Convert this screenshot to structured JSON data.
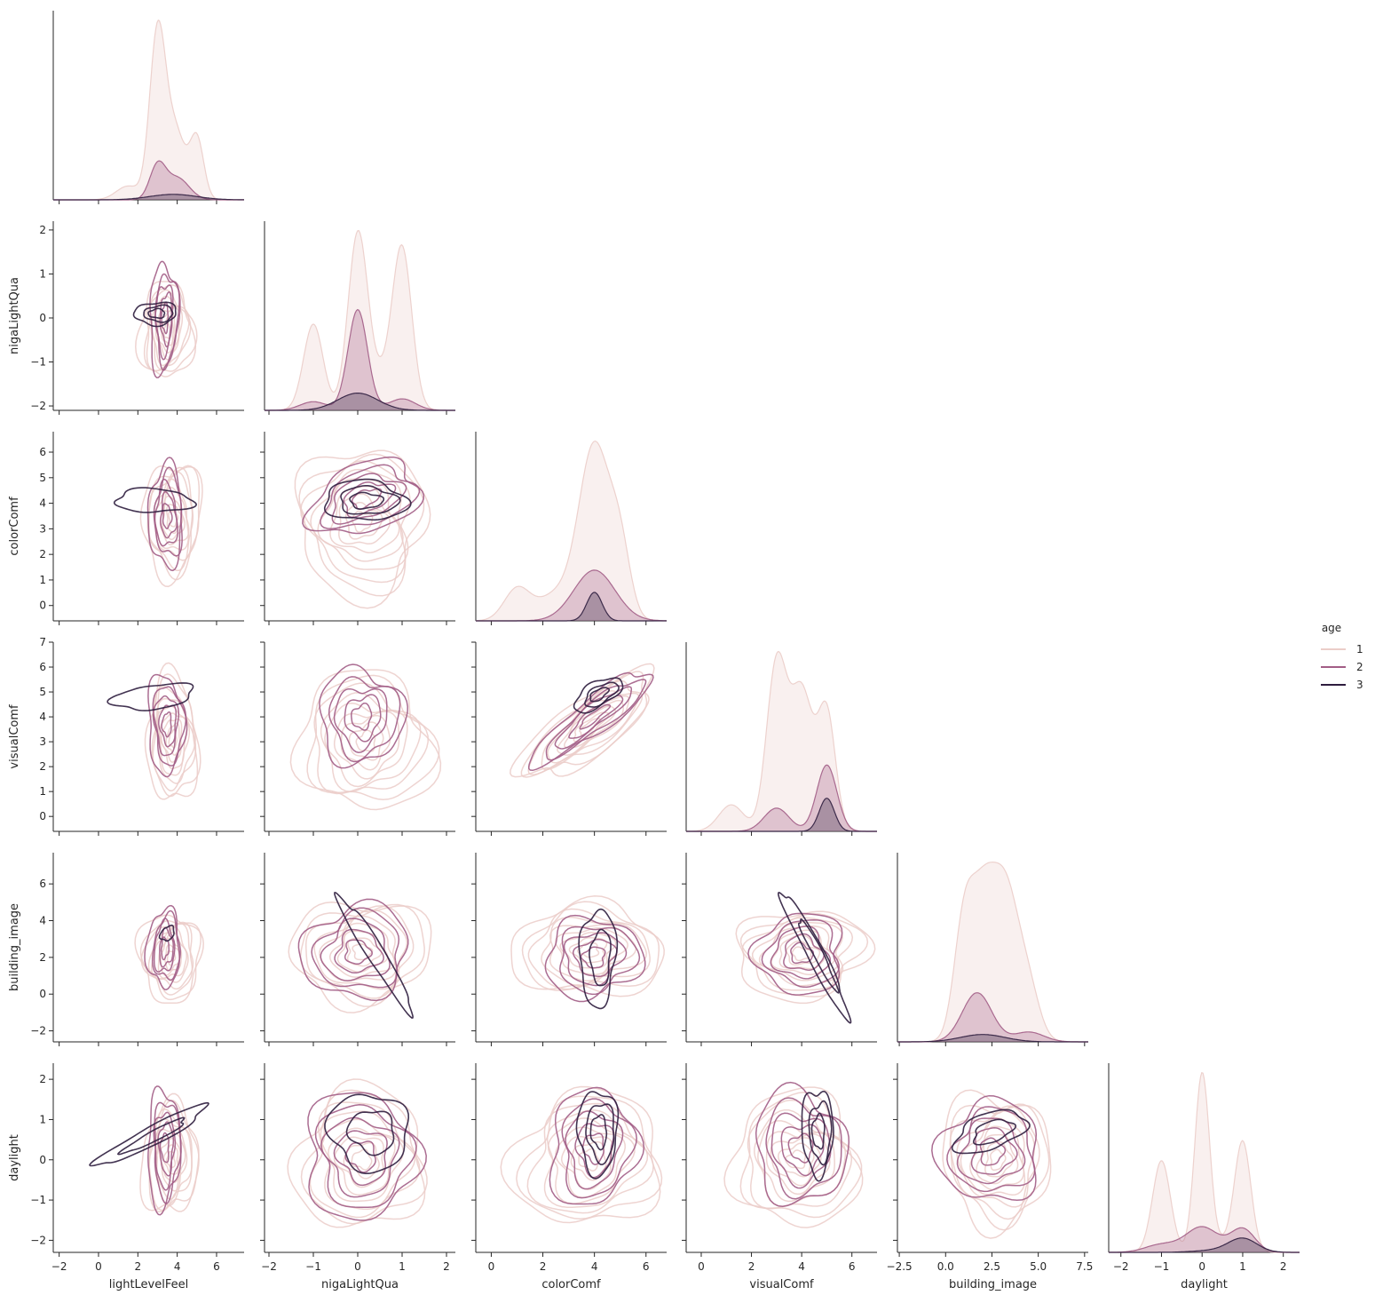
{
  "chart_data": {
    "type": "pairplot-kde",
    "hue": "age",
    "variables": [
      {
        "name": "lightLevelFeel",
        "range": [
          -2.3,
          7.4
        ],
        "ticks": [
          -2,
          0,
          2,
          4,
          6
        ],
        "center": 3.5,
        "spread": 1.2
      },
      {
        "name": "nigaLightQua",
        "range": [
          -2.1,
          2.2
        ],
        "ticks": [
          -2,
          -1,
          0,
          1,
          2
        ],
        "center": 0.1,
        "spread": 0.8
      },
      {
        "name": "colorComf",
        "range": [
          -0.6,
          6.8
        ],
        "ticks": [
          0,
          2,
          4,
          6
        ],
        "center": 3.8,
        "spread": 1.2
      },
      {
        "name": "visualComf",
        "range": [
          -0.6,
          7.0
        ],
        "ticks": [
          0,
          2,
          4,
          6
        ],
        "center": 3.8,
        "spread": 1.2
      },
      {
        "name": "building_image",
        "range": [
          -2.6,
          7.7
        ],
        "ticks": [
          -2.5,
          0.0,
          2.5,
          5.0,
          7.5
        ],
        "tickLabels": [
          "-2.5",
          "0.0",
          "2.5",
          "5.0",
          "7.5"
        ],
        "center": 2.5,
        "spread": 1.3
      },
      {
        "name": "daylight",
        "range": [
          -2.3,
          2.4
        ],
        "ticks": [
          -2,
          -1,
          0,
          1,
          2
        ],
        "center": 0.1,
        "spread": 0.8
      }
    ],
    "ytick_overrides": {
      "colorComf": [
        0,
        1,
        2,
        3,
        4,
        5,
        6
      ],
      "visualComf": [
        0,
        1,
        2,
        3,
        4,
        5,
        6,
        7
      ],
      "building_image": [
        -2,
        0,
        2,
        4,
        6
      ]
    },
    "legend": {
      "title": "age",
      "entries": [
        {
          "label": "1",
          "color": "#ebcdc9"
        },
        {
          "label": "2",
          "color": "#a25d86"
        },
        {
          "label": "3",
          "color": "#2e1d3e"
        }
      ]
    },
    "diagonal": [
      {
        "var": "lightLevelFeel",
        "series": [
          {
            "hue": "1",
            "components": [
              [
                3.0,
                0.4,
                0.6
              ],
              [
                3.9,
                0.5,
                0.25
              ],
              [
                5.0,
                0.35,
                0.22
              ],
              [
                1.5,
                0.6,
                0.05
              ]
            ]
          },
          {
            "hue": "2",
            "components": [
              [
                3.0,
                0.4,
                0.12
              ],
              [
                4.0,
                0.6,
                0.08
              ]
            ]
          },
          {
            "hue": "3",
            "components": [
              [
                3.8,
                1.2,
                0.02
              ]
            ]
          }
        ]
      },
      {
        "var": "nigaLightQua",
        "series": [
          {
            "hue": "1",
            "components": [
              [
                -1.0,
                0.22,
                0.3
              ],
              [
                0.0,
                0.22,
                0.6
              ],
              [
                1.0,
                0.22,
                0.55
              ],
              [
                0.5,
                0.3,
                0.1
              ]
            ]
          },
          {
            "hue": "2",
            "components": [
              [
                0.0,
                0.22,
                0.35
              ],
              [
                -1.0,
                0.3,
                0.03
              ],
              [
                1.0,
                0.3,
                0.04
              ]
            ]
          },
          {
            "hue": "3",
            "components": [
              [
                0.0,
                0.45,
                0.06
              ]
            ]
          }
        ]
      },
      {
        "var": "colorComf",
        "series": [
          {
            "hue": "1",
            "components": [
              [
                4.0,
                0.6,
                0.55
              ],
              [
                5.0,
                0.4,
                0.2
              ],
              [
                1.0,
                0.5,
                0.1
              ],
              [
                2.5,
                0.7,
                0.08
              ]
            ]
          },
          {
            "hue": "2",
            "components": [
              [
                4.0,
                0.8,
                0.16
              ]
            ]
          },
          {
            "hue": "3",
            "components": [
              [
                4.0,
                0.3,
                0.09
              ]
            ]
          }
        ]
      },
      {
        "var": "visualComf",
        "series": [
          {
            "hue": "1",
            "components": [
              [
                3.0,
                0.4,
                0.5
              ],
              [
                4.0,
                0.45,
                0.42
              ],
              [
                5.0,
                0.35,
                0.35
              ],
              [
                1.2,
                0.5,
                0.08
              ]
            ]
          },
          {
            "hue": "2",
            "components": [
              [
                3.0,
                0.5,
                0.07
              ],
              [
                5.0,
                0.4,
                0.2
              ]
            ]
          },
          {
            "hue": "3",
            "components": [
              [
                5.0,
                0.3,
                0.1
              ]
            ]
          }
        ]
      },
      {
        "var": "building_image",
        "series": [
          {
            "hue": "1",
            "components": [
              [
                1.0,
                0.55,
                0.48
              ],
              [
                2.0,
                0.6,
                0.45
              ],
              [
                3.2,
                0.75,
                0.62
              ],
              [
                4.5,
                0.6,
                0.18
              ]
            ]
          },
          {
            "hue": "2",
            "components": [
              [
                1.7,
                0.8,
                0.2
              ],
              [
                4.5,
                0.8,
                0.04
              ]
            ]
          },
          {
            "hue": "3",
            "components": [
              [
                2.0,
                1.2,
                0.03
              ]
            ]
          }
        ]
      },
      {
        "var": "daylight",
        "series": [
          {
            "hue": "1",
            "components": [
              [
                -1.0,
                0.22,
                0.47
              ],
              [
                0.0,
                0.18,
                0.9
              ],
              [
                1.0,
                0.2,
                0.55
              ],
              [
                0.5,
                0.4,
                0.05
              ]
            ]
          },
          {
            "hue": "2",
            "components": [
              [
                0.0,
                0.4,
                0.13
              ],
              [
                1.0,
                0.3,
                0.12
              ],
              [
                -1.0,
                0.4,
                0.04
              ]
            ]
          },
          {
            "hue": "3",
            "components": [
              [
                1.0,
                0.35,
                0.07
              ],
              [
                0.3,
                0.5,
                0.01
              ]
            ]
          }
        ]
      }
    ],
    "offdiagonal": [
      {
        "x": "lightLevelFeel",
        "y": "nigaLightQua",
        "series": [
          {
            "hue": "1",
            "center": [
              3.5,
              -0.3
            ],
            "rx": 1.3,
            "ry": 1.15,
            "rot": 0,
            "levels": 9
          },
          {
            "hue": "2",
            "center": [
              3.4,
              0.0
            ],
            "rx": 0.7,
            "ry": 1.25,
            "rot": 0,
            "levels": 5
          },
          {
            "hue": "3",
            "center": [
              3.0,
              0.1
            ],
            "rx": 1.1,
            "ry": 0.25,
            "rot": 0,
            "levels": 3
          }
        ]
      },
      {
        "x": "lightLevelFeel",
        "y": "colorComf",
        "series": [
          {
            "hue": "1",
            "center": [
              3.8,
              3.4
            ],
            "rx": 1.5,
            "ry": 2.2,
            "rot": 0,
            "levels": 9
          },
          {
            "hue": "2",
            "center": [
              3.5,
              3.5
            ],
            "rx": 0.9,
            "ry": 1.9,
            "rot": 0,
            "levels": 5
          },
          {
            "hue": "3",
            "center": [
              2.8,
              4.1
            ],
            "rx": 2.0,
            "ry": 0.45,
            "rot": 0,
            "levels": 1
          }
        ]
      },
      {
        "x": "lightLevelFeel",
        "y": "visualComf",
        "series": [
          {
            "hue": "1",
            "center": [
              3.8,
              3.1
            ],
            "rx": 1.3,
            "ry": 2.5,
            "rot": 0,
            "levels": 9
          },
          {
            "hue": "2",
            "center": [
              3.5,
              3.7
            ],
            "rx": 0.9,
            "ry": 2.0,
            "rot": 0,
            "levels": 5
          },
          {
            "hue": "3",
            "center": [
              2.8,
              4.8
            ],
            "rx": 2.0,
            "ry": 0.5,
            "rot": -8,
            "levels": 1
          }
        ]
      },
      {
        "x": "lightLevelFeel",
        "y": "building_image",
        "series": [
          {
            "hue": "1",
            "center": [
              3.7,
              2.0
            ],
            "rx": 1.5,
            "ry": 2.5,
            "rot": 0,
            "levels": 9
          },
          {
            "hue": "2",
            "center": [
              3.4,
              2.5
            ],
            "rx": 0.8,
            "ry": 2.2,
            "rot": 0,
            "levels": 5
          },
          {
            "hue": "3",
            "center": [
              3.5,
              3.3
            ],
            "rx": 0.3,
            "ry": 0.45,
            "rot": 35,
            "levels": 1
          }
        ]
      },
      {
        "x": "lightLevelFeel",
        "y": "daylight",
        "series": [
          {
            "hue": "1",
            "center": [
              3.7,
              0.0
            ],
            "rx": 1.4,
            "ry": 1.4,
            "rot": 0,
            "levels": 9
          },
          {
            "hue": "2",
            "center": [
              3.4,
              0.3
            ],
            "rx": 0.85,
            "ry": 1.4,
            "rot": 0,
            "levels": 5
          },
          {
            "hue": "3",
            "center": [
              2.8,
              0.6
            ],
            "rx": 3.3,
            "ry": 0.22,
            "rot": -28,
            "levels": 2
          }
        ]
      },
      {
        "x": "nigaLightQua",
        "y": "colorComf",
        "series": [
          {
            "hue": "1",
            "center": [
              0.1,
              3.3
            ],
            "rx": 1.5,
            "ry": 2.8,
            "rot": 0,
            "levels": 9
          },
          {
            "hue": "2",
            "center": [
              0.2,
              4.2
            ],
            "rx": 1.3,
            "ry": 1.3,
            "rot": -25,
            "levels": 5
          },
          {
            "hue": "3",
            "center": [
              0.2,
              4.1
            ],
            "rx": 0.9,
            "ry": 0.8,
            "rot": 0,
            "levels": 3
          }
        ]
      },
      {
        "x": "nigaLightQua",
        "y": "visualComf",
        "series": [
          {
            "hue": "1",
            "center": [
              0.2,
              3.0
            ],
            "rx": 1.5,
            "ry": 2.8,
            "rot": 0,
            "levels": 9
          },
          {
            "hue": "2",
            "center": [
              0.1,
              4.0
            ],
            "rx": 0.9,
            "ry": 2.0,
            "rot": 0,
            "levels": 5
          }
        ]
      },
      {
        "x": "nigaLightQua",
        "y": "building_image",
        "series": [
          {
            "hue": "1",
            "center": [
              0.1,
              2.3
            ],
            "rx": 1.5,
            "ry": 2.9,
            "rot": 0,
            "levels": 9
          },
          {
            "hue": "2",
            "center": [
              0.0,
              2.3
            ],
            "rx": 1.2,
            "ry": 2.5,
            "rot": 0,
            "levels": 5
          },
          {
            "hue": "3",
            "center": [
              0.4,
              2.2
            ],
            "rx": 1.6,
            "ry": 0.45,
            "rot": 58,
            "levels": 1
          }
        ]
      },
      {
        "x": "nigaLightQua",
        "y": "daylight",
        "series": [
          {
            "hue": "1",
            "center": [
              0.1,
              0.0
            ],
            "rx": 1.5,
            "ry": 1.7,
            "rot": 0,
            "levels": 9
          },
          {
            "hue": "2",
            "center": [
              0.1,
              0.1
            ],
            "rx": 1.3,
            "ry": 1.5,
            "rot": 0,
            "levels": 5
          },
          {
            "hue": "3",
            "center": [
              0.3,
              0.7
            ],
            "rx": 0.9,
            "ry": 0.95,
            "rot": 0,
            "levels": 2
          }
        ]
      },
      {
        "x": "colorComf",
        "y": "visualComf",
        "series": [
          {
            "hue": "1",
            "center": [
              3.8,
              3.6
            ],
            "rx": 3.2,
            "ry": 1.1,
            "rot": -38,
            "levels": 9
          },
          {
            "hue": "2",
            "center": [
              4.0,
              4.0
            ],
            "rx": 2.8,
            "ry": 0.7,
            "rot": -38,
            "levels": 5
          },
          {
            "hue": "3",
            "center": [
              4.2,
              4.9
            ],
            "rx": 1.0,
            "ry": 0.5,
            "rot": -30,
            "levels": 3
          }
        ]
      },
      {
        "x": "colorComf",
        "y": "building_image",
        "series": [
          {
            "hue": "1",
            "center": [
              3.8,
              2.4
            ],
            "rx": 2.8,
            "ry": 2.6,
            "rot": 0,
            "levels": 9
          },
          {
            "hue": "2",
            "center": [
              4.0,
              2.0
            ],
            "rx": 1.8,
            "ry": 2.2,
            "rot": 0,
            "levels": 5
          },
          {
            "hue": "3",
            "center": [
              4.2,
              2.0
            ],
            "rx": 0.7,
            "ry": 2.6,
            "rot": 0,
            "levels": 2
          }
        ]
      },
      {
        "x": "visualComf",
        "y": "building_image",
        "series": [
          {
            "hue": "1",
            "center": [
              4.0,
              2.2
            ],
            "rx": 2.6,
            "ry": 2.4,
            "rot": 0,
            "levels": 9
          },
          {
            "hue": "2",
            "center": [
              4.0,
              2.2
            ],
            "rx": 1.8,
            "ry": 2.1,
            "rot": 0,
            "levels": 5
          },
          {
            "hue": "3",
            "center": [
              4.6,
              2.2
            ],
            "rx": 2.9,
            "ry": 0.45,
            "rot": 62,
            "levels": 2
          }
        ]
      },
      {
        "x": "visualComf",
        "y": "daylight",
        "series": [
          {
            "hue": "1",
            "center": [
              3.8,
              0.0
            ],
            "rx": 2.6,
            "ry": 1.6,
            "rot": 0,
            "levels": 9
          },
          {
            "hue": "2",
            "center": [
              4.0,
              0.3
            ],
            "rx": 1.8,
            "ry": 1.4,
            "rot": 0,
            "levels": 5
          },
          {
            "hue": "3",
            "center": [
              4.7,
              0.7
            ],
            "rx": 0.6,
            "ry": 1.1,
            "rot": 0,
            "levels": 3
          }
        ]
      },
      {
        "x": "building_image",
        "y": "daylight",
        "series": [
          {
            "hue": "1",
            "center": [
              2.8,
              0.0
            ],
            "rx": 2.8,
            "ry": 1.7,
            "rot": 0,
            "levels": 9
          },
          {
            "hue": "2",
            "center": [
              2.5,
              0.2
            ],
            "rx": 2.6,
            "ry": 1.3,
            "rot": -15,
            "levels": 5
          },
          {
            "hue": "3",
            "center": [
              2.5,
              0.7
            ],
            "rx": 2.0,
            "ry": 0.45,
            "rot": -18,
            "levels": 2
          }
        ]
      },
      {
        "x": "colorComf",
        "y": "daylight",
        "series": [
          {
            "hue": "1",
            "center": [
              3.8,
              0.0
            ],
            "rx": 2.8,
            "ry": 1.7,
            "rot": 0,
            "levels": 9
          },
          {
            "hue": "2",
            "center": [
              4.0,
              0.3
            ],
            "rx": 1.7,
            "ry": 1.4,
            "rot": 0,
            "levels": 5
          },
          {
            "hue": "3",
            "center": [
              4.2,
              0.7
            ],
            "rx": 0.8,
            "ry": 1.0,
            "rot": 0,
            "levels": 3
          }
        ]
      }
    ]
  }
}
